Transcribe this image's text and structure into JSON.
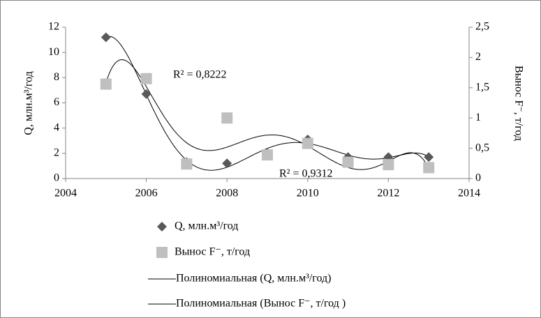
{
  "chart_data": {
    "type": "scatter",
    "y_label": "Q, млн.м³/год",
    "y2_label": "Вынос F⁻, т/год",
    "xlim": [
      2004,
      2014
    ],
    "xticks": [
      2004,
      2006,
      2008,
      2010,
      2012,
      2014
    ],
    "ylim": [
      0,
      12
    ],
    "yticks": [
      0,
      2,
      4,
      6,
      8,
      10,
      12
    ],
    "y2lim": [
      0,
      2.5
    ],
    "y2ticks": [
      {
        "value": 0,
        "label": "0"
      },
      {
        "value": 0.5,
        "label": "0,5"
      },
      {
        "value": 1,
        "label": "1"
      },
      {
        "value": 1.5,
        "label": "1,5"
      },
      {
        "value": 2,
        "label": "2"
      },
      {
        "value": 2.5,
        "label": "2,5"
      }
    ],
    "series": [
      {
        "name": "Q, млн.м³/год",
        "color": "#595959",
        "marker": "diamond",
        "x": [
          2005,
          2006,
          2007,
          2008,
          2009,
          2010,
          2011,
          2012,
          2013
        ],
        "values": [
          11.2,
          6.7,
          1.3,
          1.2,
          2.0,
          3.1,
          1.7,
          1.7,
          1.7
        ]
      },
      {
        "name": "Вынос F⁻, т/год",
        "color": "#bfbfbf",
        "marker": "square",
        "axis": "y2",
        "x": [
          2005,
          2006,
          2007,
          2008,
          2009,
          2010,
          2011,
          2012,
          2013
        ],
        "values": [
          1.56,
          1.65,
          0.24,
          1.0,
          0.39,
          0.58,
          0.27,
          0.23,
          0.18
        ]
      }
    ],
    "trendlines": [
      {
        "name": "Полиномиальная (Q, млн.м³/год)",
        "series": 0,
        "type": "polynomial",
        "order": 6,
        "color": "#000000"
      },
      {
        "name": "Полиномиальная (Вынос F⁻, т/год )",
        "series": 1,
        "type": "polynomial",
        "order": 6,
        "color": "#000000"
      }
    ],
    "annotations": [
      "R² = 0,8222",
      "R² = 0,9312"
    ]
  }
}
